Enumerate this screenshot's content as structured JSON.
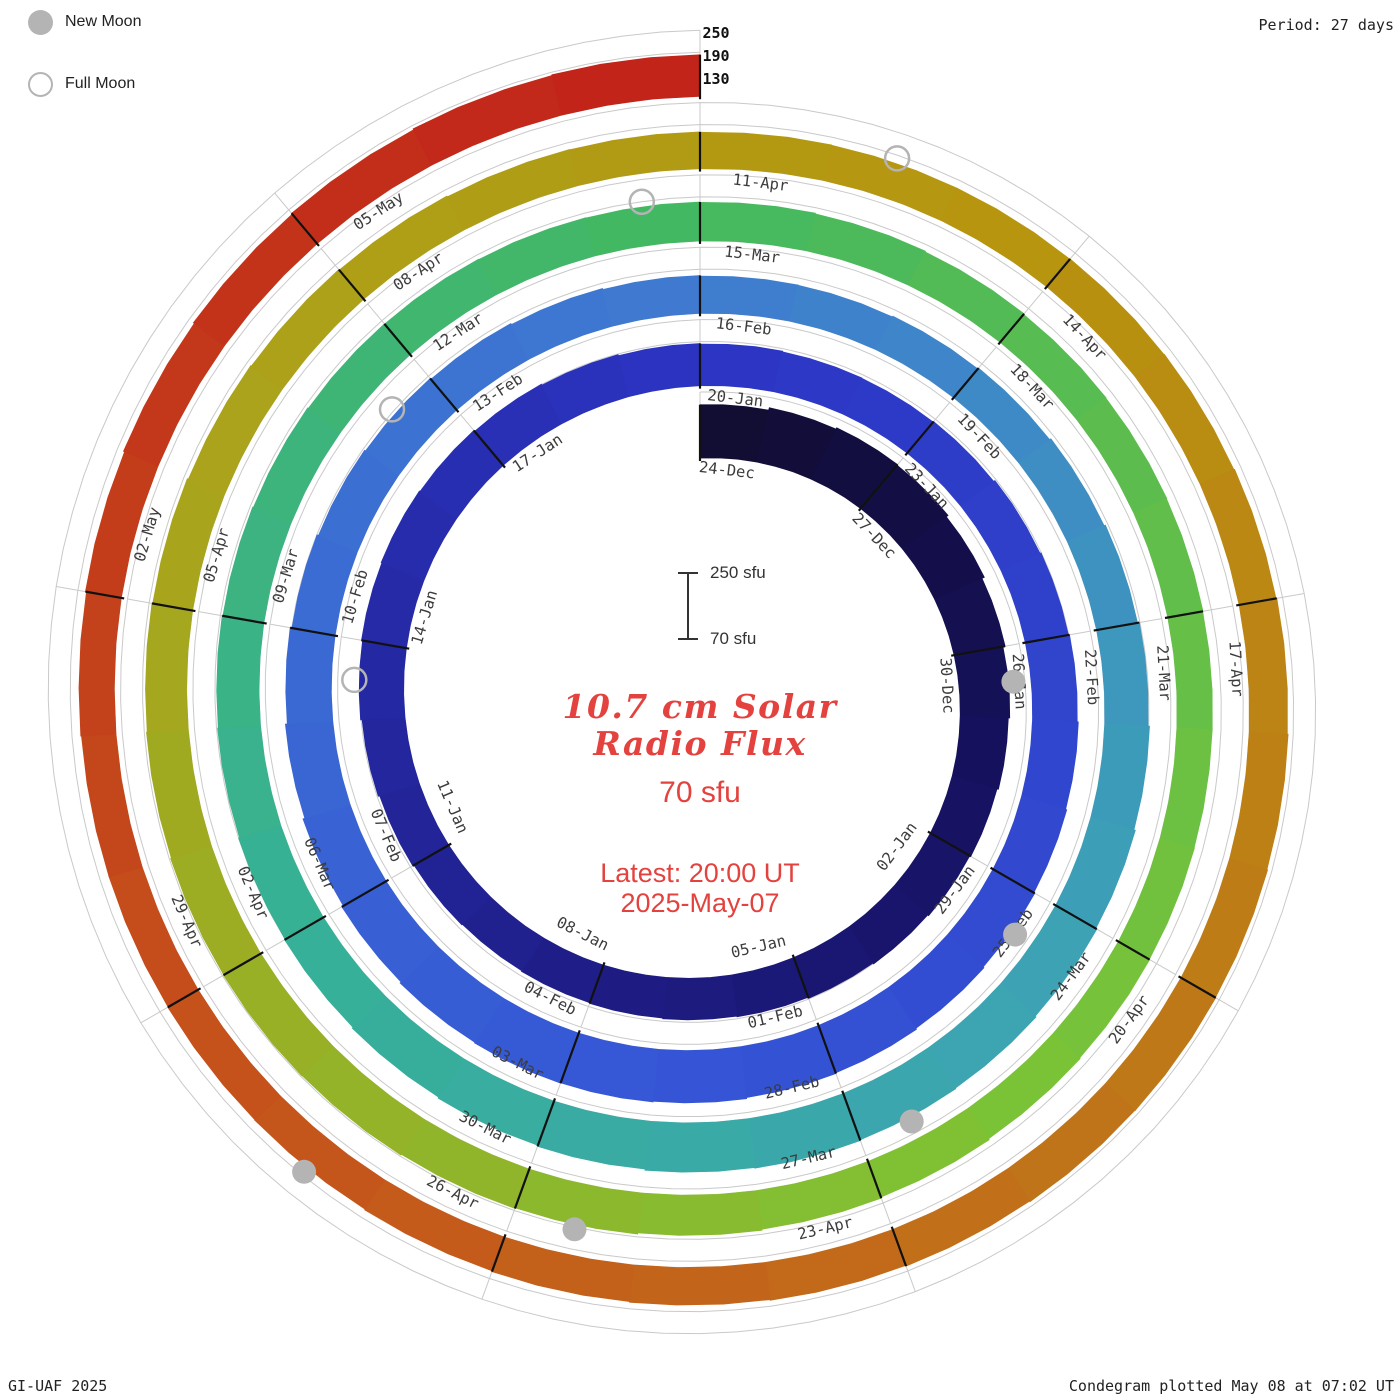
{
  "header": {
    "period_label": "Period: 27 days"
  },
  "legend": {
    "new_moon_label": "New Moon",
    "full_moon_label": "Full Moon"
  },
  "radial_axis_labels": [
    "250",
    "190",
    "130"
  ],
  "center": {
    "title_line1": "10.7 cm Solar",
    "title_line2": "Radio Flux",
    "flux_base_label": "70 sfu",
    "latest_time": "Latest: 20:00 UT",
    "latest_date": "2025-May-07"
  },
  "scale_indicator": {
    "top_label": "250 sfu",
    "bottom_label": "70 sfu"
  },
  "footer": {
    "credit": "GI-UAF 2025",
    "plotted": "Condegram plotted May 08 at 07:02 UT"
  },
  "chart_data": {
    "type": "spiral-bar-condegram",
    "title": "10.7 cm Solar Radio Flux",
    "start_date": "2024-12-24",
    "end_date": "2025-05-07",
    "period_days": 27,
    "label_step_days": 3,
    "flux_scale": {
      "min": 70,
      "max": 250,
      "unit": "sfu",
      "gridlines": [
        130,
        190,
        250
      ]
    },
    "tick_labels": [
      "24-Dec",
      "27-Dec",
      "30-Dec",
      "02-Jan",
      "05-Jan",
      "08-Jan",
      "11-Jan",
      "14-Jan",
      "17-Jan",
      "20-Jan",
      "23-Jan",
      "26-Jan",
      "29-Jan",
      "01-Feb",
      "04-Feb",
      "07-Feb",
      "10-Feb",
      "13-Feb",
      "16-Feb",
      "19-Feb",
      "22-Feb",
      "25-Feb",
      "28-Feb",
      "03-Mar",
      "06-Mar",
      "09-Mar",
      "12-Mar",
      "15-Mar",
      "18-Mar",
      "21-Mar",
      "24-Mar",
      "27-Mar",
      "30-Mar",
      "02-Apr",
      "05-Apr",
      "08-Apr",
      "11-Apr",
      "14-Apr",
      "17-Apr",
      "20-Apr",
      "23-Apr",
      "26-Apr",
      "29-Apr",
      "02-May",
      "05-May"
    ],
    "values": [
      215,
      222,
      226,
      224,
      218,
      211,
      205,
      201,
      197,
      194,
      191,
      188,
      185,
      183,
      181,
      179,
      177,
      179,
      183,
      187,
      191,
      194,
      196,
      194,
      191,
      188,
      185,
      183,
      181,
      180,
      182,
      186,
      189,
      192,
      195,
      198,
      201,
      204,
      207,
      209,
      212,
      214,
      215,
      213,
      209,
      204,
      199,
      194,
      189,
      185,
      182,
      179,
      176,
      173,
      171,
      170,
      172,
      175,
      179,
      183,
      188,
      192,
      196,
      199,
      202,
      204,
      206,
      204,
      201,
      198,
      195,
      192,
      190,
      187,
      185,
      183,
      181,
      179,
      178,
      177,
      176,
      175,
      173,
      171,
      169,
      168,
      167,
      166,
      166,
      167,
      168,
      170,
      173,
      176,
      179,
      182,
      184,
      186,
      187,
      186,
      184,
      182,
      180,
      177,
      175,
      173,
      171,
      170,
      169,
      168,
      168,
      169,
      170,
      172,
      174,
      176,
      178,
      179,
      178,
      176,
      174,
      172,
      170,
      168,
      166,
      165,
      164,
      164,
      166,
      169,
      172,
      175,
      178,
      181,
      183
    ],
    "moons": {
      "new": [
        {
          "date": "2024-12-30",
          "day_index": 6
        },
        {
          "date": "2025-01-29",
          "day_index": 36
        },
        {
          "date": "2025-02-27",
          "day_index": 65
        },
        {
          "date": "2025-03-29",
          "day_index": 95
        },
        {
          "date": "2025-04-27",
          "day_index": 124
        }
      ],
      "full": [
        {
          "date": "2025-01-13",
          "day_index": 20
        },
        {
          "date": "2025-02-12",
          "day_index": 50
        },
        {
          "date": "2025-03-14",
          "day_index": 80
        },
        {
          "date": "2025-04-12",
          "day_index": 109
        }
      ]
    },
    "colormap": [
      {
        "at": 0.0,
        "color": "#110d33"
      },
      {
        "at": 0.06,
        "color": "#171262"
      },
      {
        "at": 0.12,
        "color": "#20208e"
      },
      {
        "at": 0.2,
        "color": "#2c35c4"
      },
      {
        "at": 0.3,
        "color": "#3555d6"
      },
      {
        "at": 0.4,
        "color": "#3f7cd0"
      },
      {
        "at": 0.47,
        "color": "#3da3b4"
      },
      {
        "at": 0.53,
        "color": "#36b099"
      },
      {
        "at": 0.6,
        "color": "#44b860"
      },
      {
        "at": 0.68,
        "color": "#7cc336"
      },
      {
        "at": 0.76,
        "color": "#a8a51d"
      },
      {
        "at": 0.82,
        "color": "#b7950f"
      },
      {
        "at": 0.88,
        "color": "#c07419"
      },
      {
        "at": 0.93,
        "color": "#c5531b"
      },
      {
        "at": 1.0,
        "color": "#c2241a"
      }
    ],
    "grid_color": "#c9c9c9",
    "tick_color": "#111111",
    "moon_marker_color": "#b4b4b4",
    "accent_text_color": "#e4423e"
  }
}
